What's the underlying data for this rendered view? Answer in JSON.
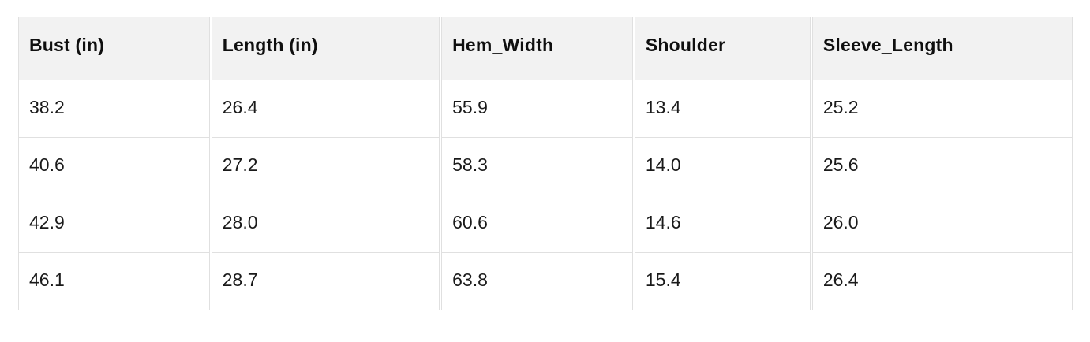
{
  "table": {
    "columns": [
      {
        "label": "Bust (in)",
        "width_pct": "18.28%"
      },
      {
        "label": "Length (in)",
        "width_pct": "21.79%"
      },
      {
        "label": "Hem_Width",
        "width_pct": "18.28%"
      },
      {
        "label": "Shoulder",
        "width_pct": "16.79%"
      },
      {
        "label": "Sleeve_Length",
        "width_pct": "24.86%"
      }
    ],
    "rows": [
      [
        "38.2",
        "26.4",
        "55.9",
        "13.4",
        "25.2"
      ],
      [
        "40.6",
        "27.2",
        "58.3",
        "14.0",
        "25.6"
      ],
      [
        "42.9",
        "28.0",
        "60.6",
        "14.6",
        "26.0"
      ],
      [
        "46.1",
        "28.7",
        "63.8",
        "15.4",
        "26.4"
      ]
    ]
  },
  "colors": {
    "header_background": "#f2f2f2",
    "cell_background": "#ffffff",
    "border": "#e0e0e0",
    "header_text": "#0f0f0f",
    "cell_text": "#1a1a1a"
  },
  "chart_data": {
    "type": "table",
    "title": "",
    "columns": [
      "Bust (in)",
      "Length (in)",
      "Hem_Width",
      "Shoulder",
      "Sleeve_Length"
    ],
    "rows": [
      [
        38.2,
        26.4,
        55.9,
        13.4,
        25.2
      ],
      [
        40.6,
        27.2,
        58.3,
        14.0,
        25.6
      ],
      [
        42.9,
        28.0,
        60.6,
        14.6,
        26.0
      ],
      [
        46.1,
        28.7,
        63.8,
        15.4,
        26.4
      ]
    ]
  }
}
